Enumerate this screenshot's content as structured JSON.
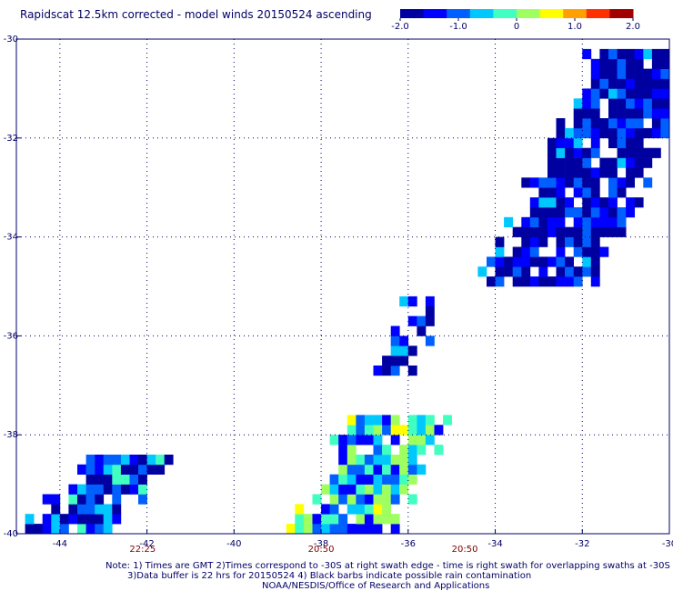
{
  "title": "Rapidscat 12.5km corrected - model winds 20150524 ascending",
  "colorbar": {
    "colors": [
      "#0000a0",
      "#0000ff",
      "#0060ff",
      "#00c8ff",
      "#40ffc0",
      "#a0ff60",
      "#ffff00",
      "#ffa000",
      "#ff3000",
      "#a00000"
    ],
    "ticks": [
      "-2.0",
      "-1.0",
      "0",
      "1.0",
      "2.0"
    ],
    "tick_values": [
      -2.0,
      -1.0,
      0,
      1.0,
      2.0
    ]
  },
  "map": {
    "lon_range": [
      -45,
      -30
    ],
    "lat_range": [
      -40,
      -30
    ],
    "lon_ticks": [
      "-44",
      "-42",
      "-40",
      "-38",
      "-36",
      "-34",
      "-32",
      "-30"
    ],
    "lon_tick_values": [
      -44,
      -42,
      -40,
      -38,
      -36,
      -34,
      -32,
      -30
    ],
    "lat_ticks": [
      "-30",
      "-32",
      "-34",
      "-36",
      "-38",
      "-40"
    ],
    "lat_tick_values": [
      -30,
      -32,
      -34,
      -36,
      -38,
      -40
    ],
    "grid": "dotted",
    "time_labels": [
      {
        "text": "22:25",
        "lon": -42.1
      },
      {
        "text": "20:50",
        "lon": -38.0
      },
      {
        "text": "20:50",
        "lon": -34.7
      }
    ],
    "time_label_color": "#800000"
  },
  "swaths": [
    {
      "name": "swath-southwest",
      "lon_left": -45.0,
      "lon_right": -41.5,
      "lat_bottom": -40.0,
      "lat_top": -38.5,
      "slope": 1.0,
      "mean": -1.3
    },
    {
      "name": "swath-central",
      "lon_left": -38.8,
      "lon_right": -34.7,
      "lat_bottom": -40.0,
      "lat_top": -37.7,
      "slope": 0.62,
      "mean": -0.5
    },
    {
      "name": "swath-narrow-band",
      "lon_left": -36.8,
      "lon_right": -35.4,
      "lat_bottom": -36.8,
      "lat_top": -35.3,
      "slope": 1.0,
      "mean": -1.4
    },
    {
      "name": "swath-northeast",
      "lon_left": -34.4,
      "lon_right": -30.0,
      "lat_bottom": -35.0,
      "lat_top": -30.3,
      "slope": 1.15,
      "mean": -1.75
    }
  ],
  "notes": {
    "line1": "Note: 1) Times are GMT 2)Times correspond to -30S at right swath edge - time is right swath for overlapping swaths at -30S",
    "line2": "3)Data buffer is 22 hrs for 20150524 4) Black barbs indicate possible rain contamination",
    "line3": "NOAA/NESDIS/Office of Research and Applications"
  }
}
